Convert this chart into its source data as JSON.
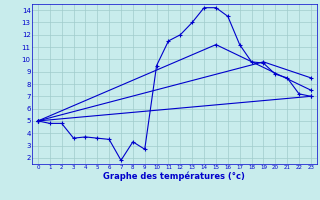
{
  "xlabel": "Graphe des températures (°c)",
  "xlim": [
    -0.5,
    23.5
  ],
  "ylim": [
    1.5,
    14.5
  ],
  "yticks": [
    2,
    3,
    4,
    5,
    6,
    7,
    8,
    9,
    10,
    11,
    12,
    13,
    14
  ],
  "xticks": [
    0,
    1,
    2,
    3,
    4,
    5,
    6,
    7,
    8,
    9,
    10,
    11,
    12,
    13,
    14,
    15,
    16,
    17,
    18,
    19,
    20,
    21,
    22,
    23
  ],
  "bg_color": "#c8ecec",
  "line_color": "#0000cc",
  "grid_color": "#a0cccc",
  "line1_x": [
    0,
    1,
    2,
    3,
    4,
    5,
    6,
    7,
    8,
    9,
    10,
    11,
    12,
    13,
    14,
    15,
    16,
    17,
    18,
    19,
    20,
    21,
    22,
    23
  ],
  "line1_y": [
    5.0,
    4.8,
    4.8,
    3.6,
    3.7,
    3.6,
    3.5,
    1.8,
    3.3,
    2.7,
    9.5,
    11.5,
    12.0,
    13.0,
    14.2,
    14.2,
    13.5,
    11.2,
    9.8,
    9.7,
    8.8,
    8.5,
    7.2,
    7.0
  ],
  "line2_x": [
    0,
    23
  ],
  "line2_y": [
    5.0,
    7.0
  ],
  "line3_x": [
    0,
    15,
    23
  ],
  "line3_y": [
    5.0,
    11.2,
    7.5
  ],
  "line4_x": [
    0,
    19,
    23
  ],
  "line4_y": [
    5.0,
    9.8,
    8.5
  ]
}
